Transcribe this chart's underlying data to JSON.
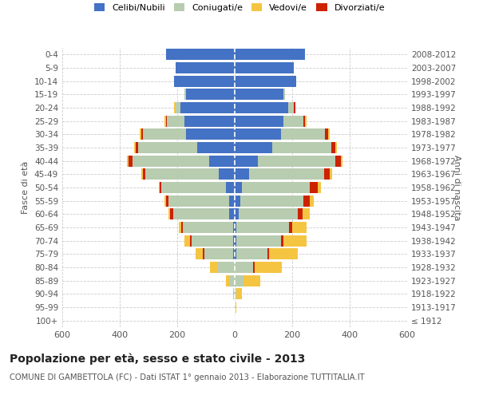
{
  "age_groups": [
    "100+",
    "95-99",
    "90-94",
    "85-89",
    "80-84",
    "75-79",
    "70-74",
    "65-69",
    "60-64",
    "55-59",
    "50-54",
    "45-49",
    "40-44",
    "35-39",
    "30-34",
    "25-29",
    "20-24",
    "15-19",
    "10-14",
    "5-9",
    "0-4"
  ],
  "birth_years": [
    "≤ 1912",
    "1913-1917",
    "1918-1922",
    "1923-1927",
    "1928-1932",
    "1933-1937",
    "1938-1942",
    "1943-1947",
    "1948-1952",
    "1953-1957",
    "1958-1962",
    "1963-1967",
    "1968-1972",
    "1973-1977",
    "1978-1982",
    "1983-1987",
    "1988-1992",
    "1993-1997",
    "1998-2002",
    "2003-2007",
    "2008-2012"
  ],
  "male": {
    "celibi": [
      0,
      0,
      0,
      0,
      0,
      5,
      5,
      5,
      20,
      20,
      30,
      55,
      90,
      130,
      170,
      175,
      190,
      170,
      210,
      205,
      240
    ],
    "coniugati": [
      0,
      0,
      5,
      20,
      60,
      100,
      145,
      175,
      195,
      210,
      225,
      255,
      265,
      205,
      150,
      60,
      15,
      5,
      0,
      0,
      0
    ],
    "vedovi": [
      0,
      0,
      0,
      10,
      25,
      25,
      20,
      10,
      5,
      5,
      5,
      5,
      5,
      5,
      5,
      5,
      5,
      0,
      0,
      0,
      0
    ],
    "divorziati": [
      0,
      0,
      0,
      0,
      0,
      5,
      5,
      5,
      10,
      10,
      5,
      10,
      15,
      10,
      5,
      5,
      0,
      0,
      0,
      0,
      0
    ]
  },
  "female": {
    "nubili": [
      0,
      0,
      0,
      0,
      0,
      5,
      5,
      5,
      15,
      20,
      25,
      50,
      80,
      130,
      160,
      170,
      185,
      170,
      215,
      205,
      245
    ],
    "coniugate": [
      0,
      0,
      5,
      30,
      65,
      110,
      155,
      185,
      205,
      220,
      235,
      260,
      270,
      205,
      155,
      70,
      20,
      5,
      0,
      0,
      0
    ],
    "vedove": [
      0,
      5,
      20,
      60,
      95,
      100,
      80,
      50,
      25,
      15,
      10,
      8,
      5,
      5,
      5,
      5,
      0,
      0,
      0,
      0,
      0
    ],
    "divorziate": [
      0,
      0,
      0,
      0,
      5,
      5,
      10,
      10,
      15,
      20,
      30,
      20,
      20,
      15,
      10,
      5,
      5,
      0,
      0,
      0,
      0
    ]
  },
  "colors": {
    "celibi": "#4472C4",
    "coniugati": "#B8CCB0",
    "vedovi": "#F5C542",
    "divorziati": "#CC2200"
  },
  "xlim": 600,
  "title": "Popolazione per età, sesso e stato civile - 2013",
  "subtitle": "COMUNE DI GAMBETTOLA (FC) - Dati ISTAT 1° gennaio 2013 - Elaborazione TUTTITALIA.IT",
  "ylabel_left": "Fasce di età",
  "ylabel_right": "Anni di nascita"
}
